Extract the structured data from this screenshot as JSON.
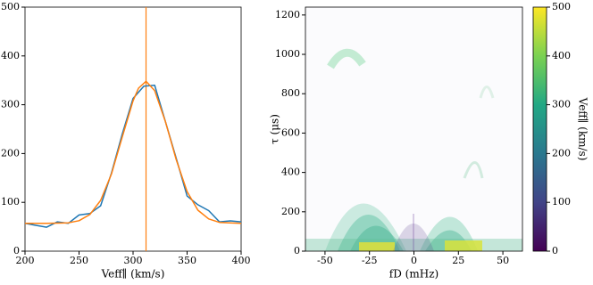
{
  "chart_data": [
    {
      "type": "line",
      "xlabel": "Veff∥ (km/s)",
      "xlim": [
        200,
        400
      ],
      "xticks": [
        200,
        250,
        300,
        350,
        400
      ],
      "ylim": [
        0,
        500
      ],
      "yticks": [
        0,
        100,
        200,
        300,
        400,
        500
      ],
      "series": [
        {
          "color": "#1f77b4",
          "x": [
            200,
            210,
            220,
            230,
            240,
            250,
            260,
            270,
            280,
            290,
            300,
            310,
            320,
            330,
            340,
            350,
            360,
            370,
            380,
            390,
            400
          ],
          "values": [
            57,
            53,
            49,
            60,
            57,
            74,
            77,
            93,
            160,
            240,
            313,
            338,
            340,
            265,
            190,
            113,
            95,
            83,
            60,
            62,
            60
          ]
        },
        {
          "color": "#ff7f0e",
          "x": [
            200,
            220,
            240,
            250,
            260,
            270,
            280,
            290,
            300,
            305,
            312,
            320,
            330,
            340,
            350,
            360,
            370,
            380,
            400
          ],
          "values": [
            57,
            57,
            58,
            62.5,
            75,
            104,
            158,
            234,
            308,
            334,
            348,
            329,
            265,
            187,
            122,
            84,
            66,
            59,
            57
          ]
        }
      ],
      "vline": {
        "x": 312,
        "color": "#ff7f0e"
      }
    },
    {
      "type": "image",
      "xlabel": "fD (mHz)",
      "ylabel": "τ (μs)",
      "xlim": [
        -61,
        61
      ],
      "xticks": [
        -50,
        -25,
        0,
        25,
        50
      ],
      "ylim": [
        0,
        1240
      ],
      "yticks": [
        0,
        200,
        400,
        600,
        800,
        1000,
        1200
      ],
      "colorbar": {
        "label": "Veff∥ (km/s)",
        "lim": [
          0,
          500
        ],
        "ticks": [
          0,
          100,
          200,
          300,
          400,
          500
        ],
        "colormap": "viridis"
      }
    }
  ]
}
